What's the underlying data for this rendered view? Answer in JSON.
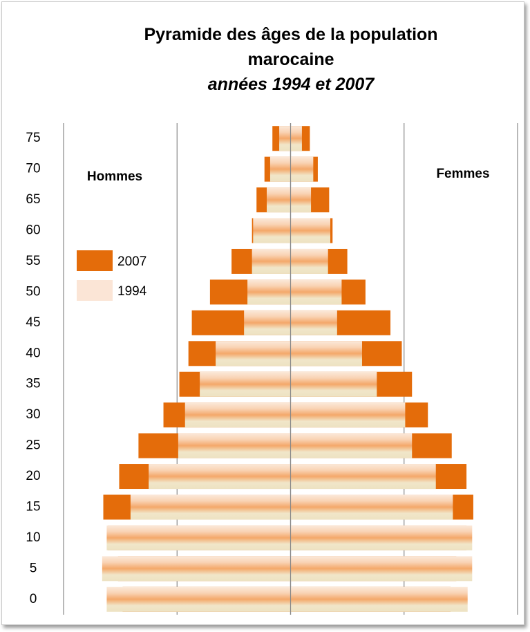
{
  "chart_data": {
    "type": "pyramid",
    "title": "Pyramide des âges de la population marocaine",
    "subtitle": "années 1994 et 2007",
    "side_labels": {
      "hommes": "Hommes",
      "femmes": "Femmes"
    },
    "categories": [
      "0",
      "5",
      "10",
      "15",
      "20",
      "25",
      "30",
      "35",
      "40",
      "45",
      "50",
      "55",
      "60",
      "65",
      "70",
      "75"
    ],
    "series": [
      {
        "name": "2007",
        "color": "#e46c0a",
        "hommes": [
          1.48,
          1.52,
          1.61,
          1.65,
          1.51,
          1.34,
          1.12,
          0.98,
          0.9,
          0.87,
          0.71,
          0.52,
          0.34,
          0.3,
          0.23,
          0.16
        ],
        "femmes": [
          1.41,
          1.46,
          1.55,
          1.61,
          1.55,
          1.42,
          1.21,
          1.07,
          0.98,
          0.88,
          0.66,
          0.5,
          0.37,
          0.34,
          0.24,
          0.17
        ]
      },
      {
        "name": "1994",
        "color": "#f4a86a",
        "hommes": [
          1.62,
          1.66,
          1.62,
          1.41,
          1.25,
          0.99,
          0.93,
          0.8,
          0.66,
          0.41,
          0.38,
          0.34,
          0.33,
          0.21,
          0.18,
          0.1
        ],
        "femmes": [
          1.56,
          1.6,
          1.6,
          1.43,
          1.28,
          1.07,
          1.01,
          0.76,
          0.63,
          0.41,
          0.45,
          0.33,
          0.35,
          0.18,
          0.2,
          0.1
        ]
      }
    ],
    "xlim": [
      -2,
      2
    ],
    "xticks": [
      -2,
      -1,
      0,
      1,
      2
    ],
    "grid": true,
    "legend": "left"
  }
}
